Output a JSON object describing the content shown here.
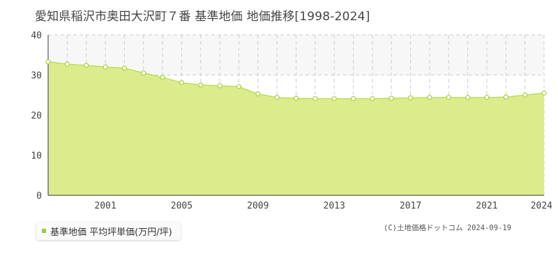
{
  "title": "愛知県稲沢市奥田大沢町７番 基準地価 地価推移[1998-2024]",
  "legend": {
    "label": "基準地価 平均坪単価(万円/坪)",
    "color": "#9acd32"
  },
  "credit": "(C)土地価格ドットコム 2024-09-19",
  "colors": {
    "area_fill": "#dcec8c",
    "line": "#b5d94a",
    "point_stroke": "#a8cf3c",
    "grid": "#cccccc",
    "band": "#f7f7f7"
  },
  "chart_data": {
    "type": "area",
    "title": "",
    "xlabel": "",
    "ylabel": "",
    "x": [
      1998,
      1999,
      2000,
      2001,
      2002,
      2003,
      2004,
      2005,
      2006,
      2007,
      2008,
      2009,
      2010,
      2011,
      2012,
      2013,
      2014,
      2015,
      2016,
      2017,
      2018,
      2019,
      2020,
      2021,
      2022,
      2023,
      2024
    ],
    "series": [
      {
        "values": [
          33.3,
          32.7,
          32.4,
          32.0,
          31.7,
          30.5,
          29.4,
          28.1,
          27.5,
          27.3,
          27.1,
          25.3,
          24.4,
          24.2,
          24.1,
          24.1,
          24.1,
          24.1,
          24.2,
          24.3,
          24.4,
          24.4,
          24.4,
          24.4,
          24.5,
          25.0,
          25.5
        ]
      }
    ],
    "xlim": [
      1998,
      2024
    ],
    "ylim": [
      0,
      40
    ],
    "y_ticks": [
      0,
      10,
      20,
      30,
      40
    ],
    "x_tick_labels": [
      "2001",
      "2005",
      "2009",
      "2013",
      "2017",
      "2021",
      "2024"
    ],
    "grid": true,
    "legend_position": "bottom-left"
  }
}
